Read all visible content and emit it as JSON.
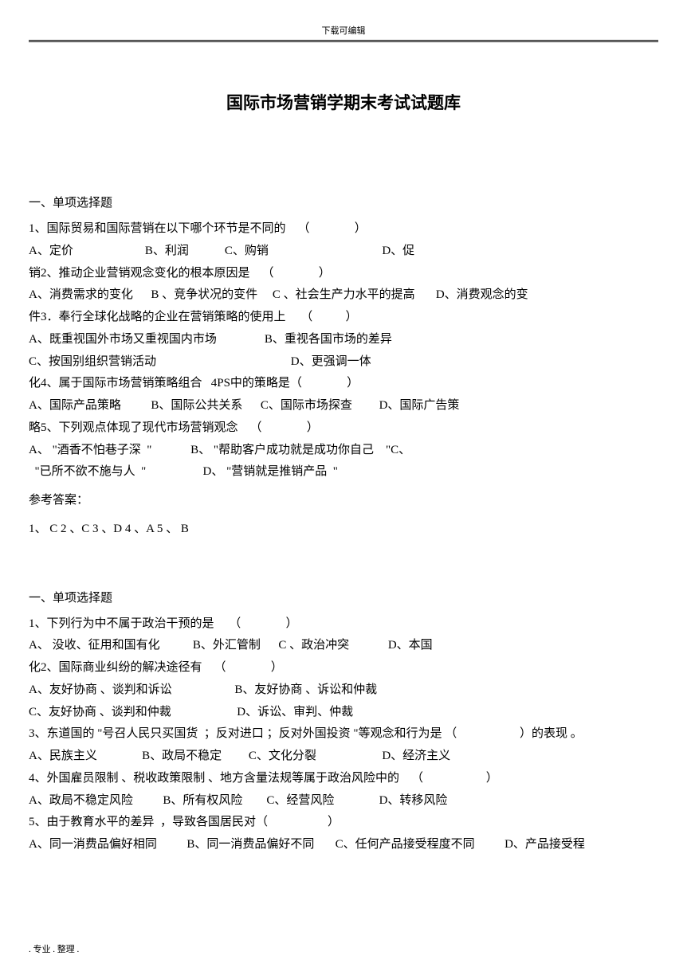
{
  "header": {
    "watermark": "下载可编辑"
  },
  "title": "国际市场营销学期末考试试题库",
  "section1": {
    "heading": "一、单项选择题",
    "q1": "1、国际贸易和国际营销在以下哪个环节是不同的    （               ）",
    "q1_opts": "A、定价                        B、利润            C、购销                                      D、促",
    "q2": "销2、推动企业营销观念变化的根本原因是    （               ）",
    "q2_opts": "A、消费需求的变化      B 、竞争状况的变件     C 、社会生产力水平的提高       D、消费观念的变",
    "q3": "件3．奉行全球化战略的企业在营销策略的使用上     （           ）",
    "q3_opt_a": "A、既重视国外市场又重视国内市场                B、重视各国市场的差异",
    "q3_opt_c": "C、按国别组织营销活动                                             D、更强调一体",
    "q4": "化4、属于国际市场营销策略组合   4PS中的策略是（               ）",
    "q4_opts": "A、国际产品策略          B、国际公共关系      C、国际市场探查         D、国际广告策",
    "q5": "略5、下列观点体现了现代市场营销观念    （               ）",
    "q5_opt_a": "A、 \"酒香不怕巷子深  \"             B、 \"帮助客户成功就是成功你自己    \"C、",
    "q5_opt_c": "  \"已所不欲不施与人  \"                   D、 \"营销就是推销产品  \"",
    "answer_label": "参考答案：",
    "answers": "1、  C    2 、C    3 、D    4 、A    5 、  B"
  },
  "section2": {
    "heading": "一、单项选择题",
    "q1": "1、下列行为中不属于政治干预的是     （               ）",
    "q1_opts": "A、 没收、征用和国有化           B、外汇管制      C 、政治冲突             D、本国",
    "q2": "化2、国际商业纠纷的解决途径有    （               ）",
    "q2_opt_a": "A、友好协商 、谈判和诉讼                     B、友好协商 、诉讼和仲裁",
    "q2_opt_c": "C、友好协商 、谈判和仲裁                      D、诉讼、审判、仲裁",
    "q3": "3、东道国的 \"号召人民只买国货  ；反对进口 ；反对外国投资 \"等观念和行为是 （                     ）的表现 。",
    "q3_opts": "A、民族主义               B、政局不稳定         C、文化分裂                      D、经济主义",
    "q4": "4、外国雇员限制 、税收政策限制 、地方含量法规等属于政治风险中的    （                     ）",
    "q4_opts": "A、政局不稳定风险          B、所有权风险        C、经营风险               D、转移风险",
    "q5": "5、由于教育水平的差异  ，导致各国居民对（                    ）",
    "q5_opts": "A、同一消费品偏好相同          B、同一消费品偏好不同       C、任何产品接受程度不同          D、产品接受程"
  },
  "footer": ". 专业 . 整理 ."
}
